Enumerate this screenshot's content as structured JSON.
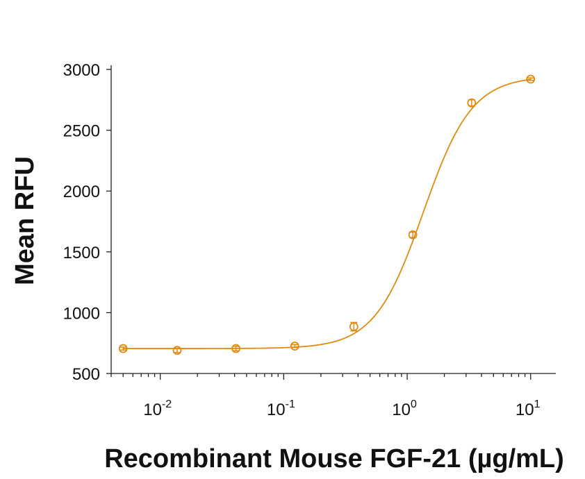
{
  "chart_data": {
    "type": "scatter",
    "xlabel": "Recombinant Mouse FGF-21 (µg/mL)",
    "ylabel": "Mean RFU",
    "x_scale": "log",
    "xlim": [
      0.004,
      16
    ],
    "ylim": [
      500,
      3000
    ],
    "y_ticks": [
      500,
      1000,
      1500,
      2000,
      2500,
      3000
    ],
    "x_ticks": [
      {
        "value": 0.01,
        "base": "10",
        "exp": "-2"
      },
      {
        "value": 0.1,
        "base": "10",
        "exp": "-1"
      },
      {
        "value": 1,
        "base": "10",
        "exp": "0"
      },
      {
        "value": 10,
        "base": "10",
        "exp": "1"
      }
    ],
    "grid": false,
    "color": "#e08a12",
    "series": [
      {
        "x": [
          0.005,
          0.0137,
          0.041,
          0.123,
          0.37,
          1.11,
          3.33,
          10
        ],
        "y": [
          705,
          690,
          705,
          725,
          885,
          1640,
          2725,
          2920
        ],
        "err": [
          12,
          18,
          18,
          12,
          35,
          22,
          25,
          10
        ]
      }
    ],
    "fit": {
      "model": "4PL",
      "bottom": 705,
      "top": 2945,
      "ec50": 1.35,
      "hill": 2.2
    }
  }
}
